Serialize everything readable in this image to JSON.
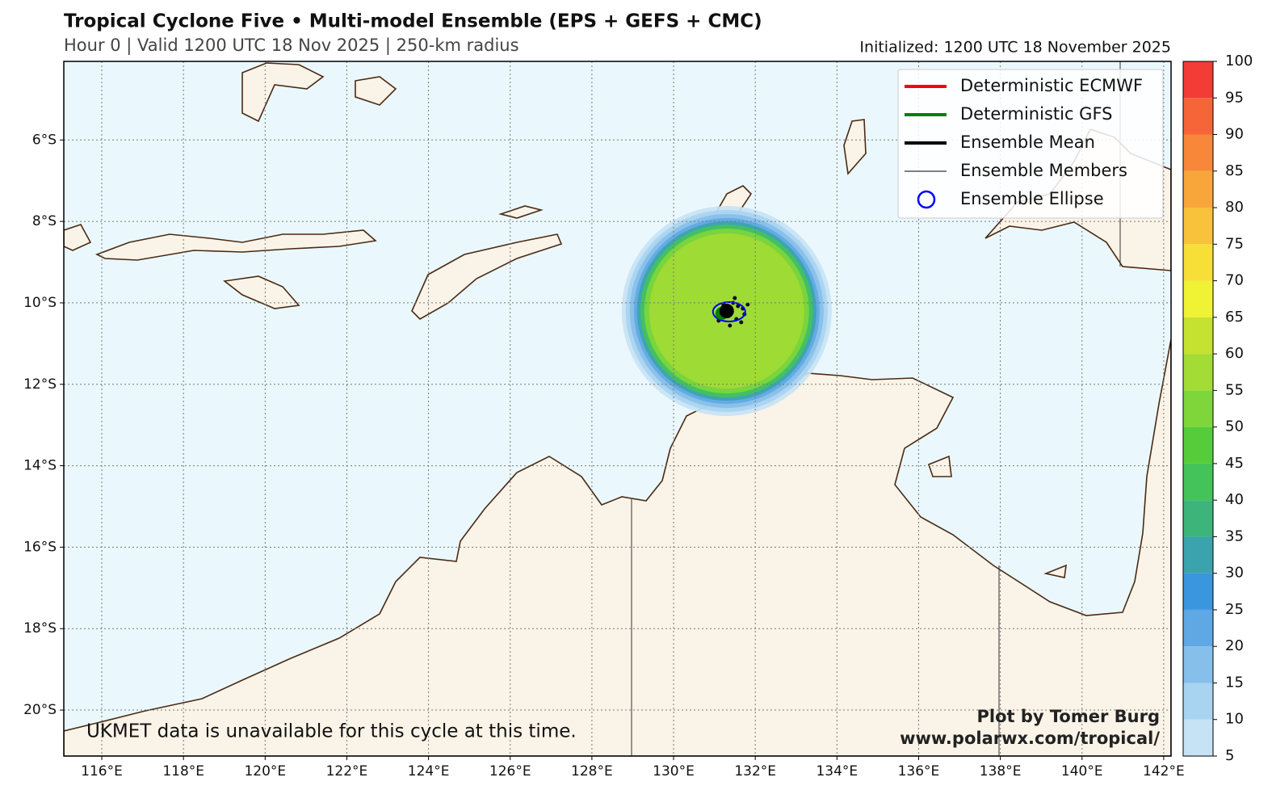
{
  "header": {
    "title": "Tropical Cyclone Five • Multi-model Ensemble (EPS + GEFS + CMC)",
    "subtitle": "Hour 0 | Valid 1200 UTC 18 Nov 2025 | 250-km radius",
    "initialized": "Initialized: 1200 UTC 18 November 2025"
  },
  "map": {
    "lon_lim": [
      115.07,
      142.18
    ],
    "lat_lim": [
      -4.07,
      -21.13
    ],
    "grid": true,
    "lon_ticks": [
      {
        "value": 116,
        "label": "116°E"
      },
      {
        "value": 118,
        "label": "118°E"
      },
      {
        "value": 120,
        "label": "120°E"
      },
      {
        "value": 122,
        "label": "122°E"
      },
      {
        "value": 124,
        "label": "124°E"
      },
      {
        "value": 126,
        "label": "126°E"
      },
      {
        "value": 128,
        "label": "128°E"
      },
      {
        "value": 130,
        "label": "130°E"
      },
      {
        "value": 132,
        "label": "132°E"
      },
      {
        "value": 134,
        "label": "134°E"
      },
      {
        "value": 136,
        "label": "136°E"
      },
      {
        "value": 138,
        "label": "138°E"
      },
      {
        "value": 140,
        "label": "140°E"
      },
      {
        "value": 142,
        "label": "142°E"
      }
    ],
    "lat_ticks": [
      {
        "value": -6,
        "label": "6°S"
      },
      {
        "value": -8,
        "label": "8°S"
      },
      {
        "value": -10,
        "label": "10°S"
      },
      {
        "value": -12,
        "label": "12°S"
      },
      {
        "value": -14,
        "label": "14°S"
      },
      {
        "value": -16,
        "label": "16°S"
      },
      {
        "value": -18,
        "label": "18°S"
      },
      {
        "value": -20,
        "label": "20°S"
      }
    ],
    "center": {
      "lon": 131.3,
      "lat": -10.2
    }
  },
  "legend": {
    "position": "upper right",
    "entries": [
      {
        "name": "Deterministic ECMWF",
        "color": "#ff0000",
        "style": "thick"
      },
      {
        "name": "Deterministic GFS",
        "color": "#008000",
        "style": "thick"
      },
      {
        "name": "Ensemble Mean",
        "color": "#000000",
        "style": "thick"
      },
      {
        "name": "Ensemble Members",
        "color": "#000000",
        "style": "thin"
      },
      {
        "name": "Ensemble Ellipse",
        "color": "#0000ff",
        "style": "circle"
      }
    ]
  },
  "colorbar": {
    "lim": [
      5,
      100
    ],
    "ticks": [
      5,
      10,
      15,
      20,
      25,
      30,
      35,
      40,
      45,
      50,
      55,
      60,
      65,
      70,
      75,
      80,
      85,
      90,
      95,
      100
    ],
    "colors": [
      "#c6e2f5",
      "#a8d3f1",
      "#86bfea",
      "#5fa8e3",
      "#3a96de",
      "#3aa3ad",
      "#3db47a",
      "#44c35a",
      "#56cc3a",
      "#7fd63a",
      "#a3dc34",
      "#c5e230",
      "#eff334",
      "#f8df38",
      "#f8c23a",
      "#f8a63a",
      "#f8873a",
      "#f66537",
      "#f23c35"
    ]
  },
  "notes": {
    "ukmet": "UKMET data is unavailable for this cycle at this time.",
    "credit": "Plot by Tomer Burg",
    "url": "www.polarwx.com/tropical/"
  }
}
